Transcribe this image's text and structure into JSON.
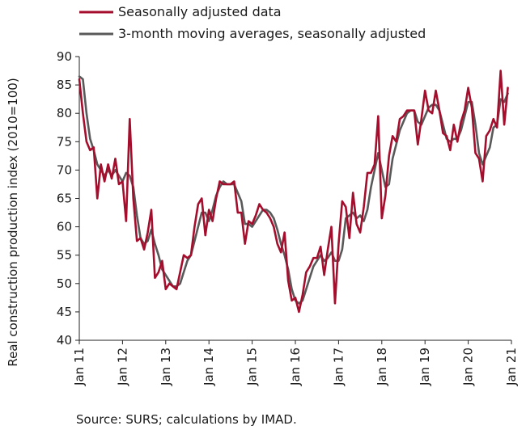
{
  "chart_data": {
    "type": "line",
    "ylabel": "Real construction production index (2010=100)",
    "source": "Source: SURS; calculations by IMAD.",
    "ylim": [
      40,
      90
    ],
    "yticks": [
      40,
      45,
      50,
      55,
      60,
      65,
      70,
      75,
      80,
      85,
      90
    ],
    "xlim": [
      "2011-01",
      "2021-01"
    ],
    "xticks": [
      "Jan 11",
      "Jan 12",
      "Jan 13",
      "Jan 14",
      "Jan 15",
      "Jan 16",
      "Jan 17",
      "Jan 18",
      "Jan 19",
      "Jan 20",
      "Jan 21"
    ],
    "legend_position": "top-left",
    "grid": false,
    "start_month": "2011-01",
    "series": [
      {
        "name": "Seasonally adjusted data",
        "color": "#a50d2c",
        "values": [
          86,
          80,
          75,
          73.5,
          74,
          65,
          71,
          68,
          71,
          68.5,
          72,
          67.5,
          68,
          61,
          79,
          65,
          57.5,
          58,
          56,
          59,
          63,
          51,
          52,
          54,
          49,
          50,
          49.5,
          49,
          52,
          55,
          54.5,
          55,
          60,
          64,
          65,
          58.5,
          63,
          61,
          65,
          68,
          67.5,
          67.5,
          67.5,
          68,
          62.5,
          62.5,
          57,
          61,
          60.5,
          62,
          64,
          63,
          62.5,
          61.5,
          60,
          57,
          55.5,
          59,
          50.5,
          47,
          47.5,
          45,
          48,
          52,
          53,
          54.5,
          54.5,
          56.5,
          51.5,
          56,
          60,
          46.5,
          57,
          64.5,
          63.5,
          58,
          66,
          60.5,
          59,
          63.5,
          69.5,
          69.5,
          71,
          79.5,
          61.5,
          65.5,
          72.5,
          76,
          75,
          79,
          79.5,
          80.5,
          80.5,
          80.5,
          74.5,
          79,
          84,
          80.5,
          80,
          84,
          80.5,
          76.5,
          76,
          73.5,
          78,
          75,
          78.5,
          80.5,
          84.5,
          81,
          73,
          72,
          68,
          76,
          77,
          79,
          77.5,
          87.5,
          78,
          84.5
        ],
        "style": "solid"
      },
      {
        "name": "3-month moving averages, seasonally adjusted",
        "color": "#595959",
        "values": [
          86.5,
          86,
          80,
          75.5,
          73.5,
          71,
          70,
          69,
          70,
          69,
          70,
          69,
          68,
          69.5,
          69,
          67,
          62,
          58,
          57,
          57.5,
          59.5,
          57,
          55,
          52.5,
          51.5,
          50.5,
          49.5,
          49.5,
          50,
          52,
          54,
          55,
          57.5,
          60,
          62.5,
          62.5,
          61,
          63,
          65.5,
          67,
          68,
          67.5,
          67.5,
          67.5,
          66,
          64.5,
          60.5,
          60.5,
          60,
          61,
          62,
          63,
          63,
          62.5,
          61.5,
          59.5,
          57,
          55,
          52.5,
          49,
          47,
          46.5,
          47,
          49,
          51,
          53,
          54,
          55,
          54,
          54.5,
          55.5,
          54,
          54,
          56,
          61.5,
          62,
          62.5,
          61.5,
          62,
          61,
          63,
          67,
          70,
          73,
          70,
          67,
          67.5,
          72,
          74.5,
          77,
          78.5,
          80,
          80.5,
          80.5,
          78.5,
          78,
          79.5,
          81,
          81.5,
          81.5,
          80.5,
          78,
          75.5,
          75,
          75.5,
          75.5,
          77,
          79.5,
          82,
          82,
          78,
          73,
          71,
          72.5,
          74,
          77.5,
          78,
          82.5,
          82,
          83.5
        ],
        "style": "solid"
      }
    ]
  }
}
